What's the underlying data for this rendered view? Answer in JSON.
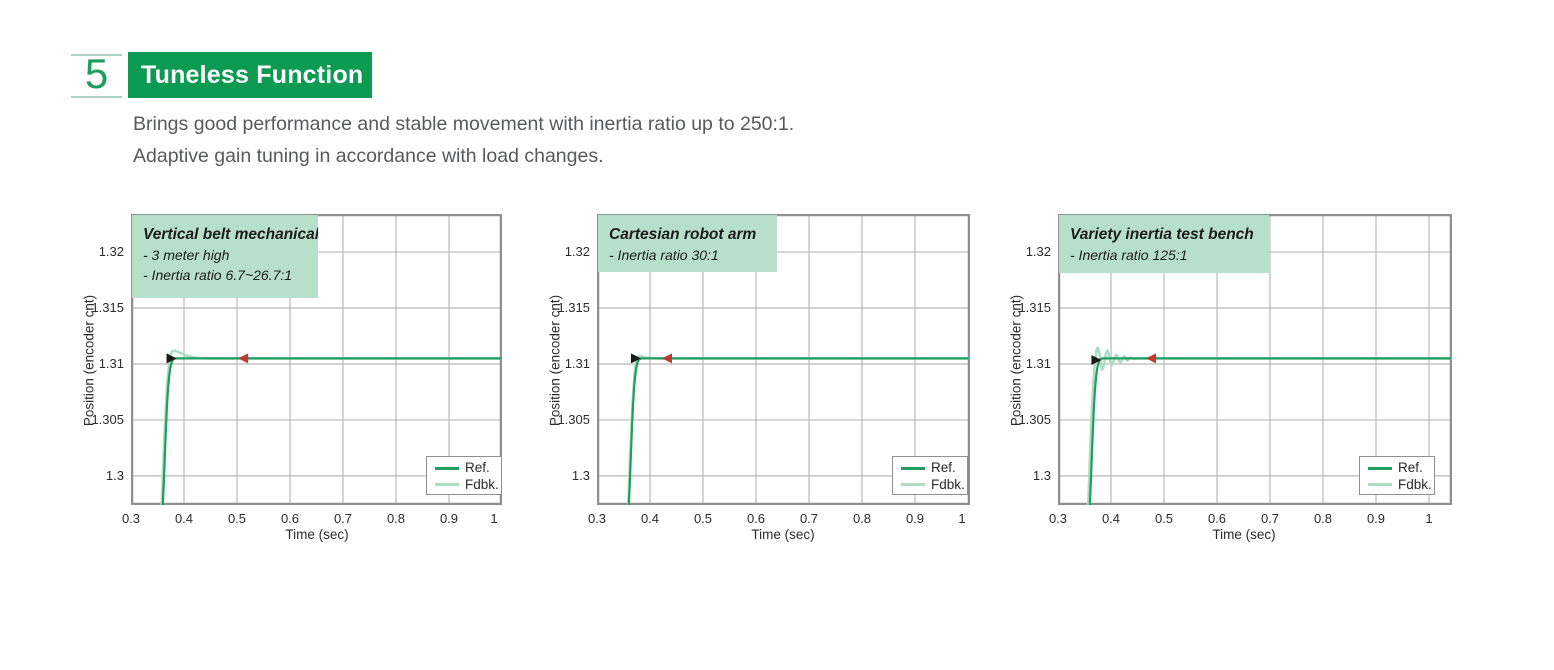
{
  "section": {
    "number": "5",
    "title": "Tuneless Function",
    "description_lines": [
      "Brings good performance and stable movement with inertia ratio up to 250:1.",
      "Adaptive gain tuning in accordance with load changes."
    ]
  },
  "colors": {
    "header_green": "#0d9a52",
    "header_text": "#ffffff",
    "number_green": "#1d9c5f",
    "number_line_green": "#a9d4c2",
    "description_text": "#58595b",
    "mint_box": "#b7dfca",
    "label_text": "#1c1c1c",
    "ref_line": "#1f9e62",
    "fdbk_line": "#aedcc4",
    "marker_black": "#1a1a1a",
    "marker_red": "#c0392f",
    "grid": "#b9b9b9",
    "plot_border": "#8f8f8f",
    "axis_text": "#2b2b2b"
  },
  "chart_data": [
    {
      "type": "line",
      "title": "Vertical belt mechanical",
      "annotation_lines": [
        "- 3 meter high",
        "- Inertia ratio 6.7~26.7:1"
      ],
      "xlabel": "Time (sec)",
      "ylabel": "Position (encoder cnt)",
      "x_ticks": [
        "0.3",
        "0.4",
        "0.5",
        "0.6",
        "0.7",
        "0.8",
        "0.9",
        "1"
      ],
      "y_ticks": [
        "1.3",
        "1.305",
        "1.31",
        "1.315",
        "1.32"
      ],
      "xlim": [
        0.3,
        1.0
      ],
      "ylim": [
        1.2974,
        1.3234
      ],
      "grid": true,
      "legend": {
        "position": "bottom-right",
        "entries": [
          "Ref.",
          "Fdbk."
        ]
      },
      "settle_value": 1.3105,
      "series": [
        {
          "name": "Ref.",
          "points": [
            [
              0.36,
              1.2974
            ],
            [
              0.362,
              1.29955
            ],
            [
              0.364,
              1.30195
            ],
            [
              0.366,
              1.30435
            ],
            [
              0.368,
              1.3063
            ],
            [
              0.37,
              1.30785
            ],
            [
              0.372,
              1.3089
            ],
            [
              0.374,
              1.3096
            ],
            [
              0.376,
              1.31005
            ],
            [
              0.378,
              1.3103
            ],
            [
              0.38,
              1.31043
            ],
            [
              0.383,
              1.31049
            ],
            [
              0.386,
              1.3105
            ],
            [
              1.0,
              1.3105
            ]
          ]
        },
        {
          "name": "Fdbk.",
          "points": [
            [
              0.358,
              1.2974
            ],
            [
              0.36,
              1.2998
            ],
            [
              0.362,
              1.3022
            ],
            [
              0.364,
              1.3045
            ],
            [
              0.366,
              1.3064
            ],
            [
              0.368,
              1.308
            ],
            [
              0.37,
              1.3092
            ],
            [
              0.372,
              1.31
            ],
            [
              0.374,
              1.31062
            ],
            [
              0.376,
              1.31098
            ],
            [
              0.378,
              1.31112
            ],
            [
              0.381,
              1.31118
            ],
            [
              0.385,
              1.31115
            ],
            [
              0.39,
              1.31105
            ],
            [
              0.397,
              1.3109
            ],
            [
              0.406,
              1.31072
            ],
            [
              0.418,
              1.31058
            ],
            [
              0.432,
              1.31052
            ],
            [
              0.45,
              1.3105
            ],
            [
              1.0,
              1.3105
            ]
          ]
        }
      ],
      "markers": [
        {
          "shape": "triangle-right",
          "color": "black",
          "t": 0.384,
          "v": 1.3105
        },
        {
          "shape": "triangle-left",
          "color": "red",
          "t": 0.504,
          "v": 1.3105
        }
      ]
    },
    {
      "type": "line",
      "title": "Cartesian robot arm",
      "annotation_lines": [
        "- Inertia ratio 30:1"
      ],
      "xlabel": "Time (sec)",
      "ylabel": "Position (encoder cnt)",
      "x_ticks": [
        "0.3",
        "0.4",
        "0.5",
        "0.6",
        "0.7",
        "0.8",
        "0.9",
        "1"
      ],
      "y_ticks": [
        "1.3",
        "1.305",
        "1.31",
        "1.315",
        "1.32"
      ],
      "xlim": [
        0.3,
        1.0
      ],
      "ylim": [
        1.2974,
        1.3234
      ],
      "grid": true,
      "legend": {
        "position": "bottom-right",
        "entries": [
          "Ref.",
          "Fdbk."
        ]
      },
      "settle_value": 1.3105,
      "series": [
        {
          "name": "Ref.",
          "points": [
            [
              0.36,
              1.2974
            ],
            [
              0.362,
              1.29955
            ],
            [
              0.364,
              1.30195
            ],
            [
              0.366,
              1.30435
            ],
            [
              0.368,
              1.3063
            ],
            [
              0.37,
              1.30785
            ],
            [
              0.372,
              1.3089
            ],
            [
              0.374,
              1.3096
            ],
            [
              0.376,
              1.31005
            ],
            [
              0.378,
              1.3103
            ],
            [
              0.38,
              1.31043
            ],
            [
              0.383,
              1.31049
            ],
            [
              0.386,
              1.3105
            ],
            [
              1.0,
              1.3105
            ]
          ]
        },
        {
          "name": "Fdbk.",
          "points": [
            [
              0.359,
              1.2974
            ],
            [
              0.361,
              1.2998
            ],
            [
              0.363,
              1.3022
            ],
            [
              0.365,
              1.3045
            ],
            [
              0.367,
              1.3064
            ],
            [
              0.369,
              1.308
            ],
            [
              0.371,
              1.3092
            ],
            [
              0.373,
              1.31
            ],
            [
              0.375,
              1.31045
            ],
            [
              0.377,
              1.31065
            ],
            [
              0.38,
              1.31072
            ],
            [
              0.384,
              1.31068
            ],
            [
              0.39,
              1.3106
            ],
            [
              0.4,
              1.31053
            ],
            [
              0.415,
              1.3105
            ],
            [
              1.0,
              1.3105
            ]
          ]
        }
      ],
      "markers": [
        {
          "shape": "triangle-right",
          "color": "black",
          "t": 0.381,
          "v": 1.3105
        },
        {
          "shape": "triangle-left",
          "color": "red",
          "t": 0.4245,
          "v": 1.3105
        }
      ]
    },
    {
      "type": "line",
      "title": "Variety inertia test bench",
      "annotation_lines": [
        "- Inertia ratio 125:1"
      ],
      "xlabel": "Time (sec)",
      "ylabel": "Position (encoder cnt)",
      "x_ticks": [
        "0.3",
        "0.4",
        "0.5",
        "0.6",
        "0.7",
        "0.8",
        "0.9",
        "1"
      ],
      "y_ticks": [
        "1.3",
        "1.305",
        "1.31",
        "1.315",
        "1.32"
      ],
      "xlim": [
        0.3,
        1.04
      ],
      "ylim": [
        1.2974,
        1.3234
      ],
      "grid": true,
      "legend": {
        "position": "bottom-right",
        "entries": [
          "Ref.",
          "Fdbk."
        ]
      },
      "settle_value": 1.3105,
      "series": [
        {
          "name": "Ref.",
          "points": [
            [
              0.36,
              1.2974
            ],
            [
              0.362,
              1.29955
            ],
            [
              0.364,
              1.30195
            ],
            [
              0.366,
              1.30435
            ],
            [
              0.368,
              1.3063
            ],
            [
              0.37,
              1.30785
            ],
            [
              0.372,
              1.3089
            ],
            [
              0.374,
              1.3096
            ],
            [
              0.376,
              1.31005
            ],
            [
              0.378,
              1.3103
            ],
            [
              0.38,
              1.31043
            ],
            [
              0.383,
              1.31049
            ],
            [
              0.386,
              1.3105
            ],
            [
              1.04,
              1.3105
            ]
          ]
        },
        {
          "name": "Fdbk.",
          "points": [
            [
              0.357,
              1.2974
            ],
            [
              0.359,
              1.3
            ],
            [
              0.361,
              1.3026
            ],
            [
              0.363,
              1.305
            ],
            [
              0.365,
              1.307
            ],
            [
              0.367,
              1.3086
            ],
            [
              0.369,
              1.3098
            ],
            [
              0.371,
              1.3107
            ],
            [
              0.373,
              1.3113
            ],
            [
              0.375,
              1.31145
            ],
            [
              0.377,
              1.3112
            ],
            [
              0.379,
              1.3106
            ],
            [
              0.381,
              1.3099
            ],
            [
              0.383,
              1.3095
            ],
            [
              0.385,
              1.3096
            ],
            [
              0.387,
              1.31
            ],
            [
              0.389,
              1.3106
            ],
            [
              0.391,
              1.311
            ],
            [
              0.393,
              1.3112
            ],
            [
              0.395,
              1.311
            ],
            [
              0.397,
              1.3106
            ],
            [
              0.399,
              1.3102
            ],
            [
              0.401,
              1.3099
            ],
            [
              0.403,
              1.31
            ],
            [
              0.405,
              1.3103
            ],
            [
              0.407,
              1.3106
            ],
            [
              0.409,
              1.3108
            ],
            [
              0.411,
              1.3108
            ],
            [
              0.413,
              1.3106
            ],
            [
              0.415,
              1.3103
            ],
            [
              0.417,
              1.3101
            ],
            [
              0.419,
              1.3102
            ],
            [
              0.421,
              1.3104
            ],
            [
              0.423,
              1.3106
            ],
            [
              0.425,
              1.3107
            ],
            [
              0.427,
              1.3106
            ],
            [
              0.429,
              1.3104
            ],
            [
              0.431,
              1.3103
            ],
            [
              0.433,
              1.3104
            ],
            [
              0.436,
              1.3106
            ],
            [
              0.44,
              1.3105
            ],
            [
              0.444,
              1.31045
            ],
            [
              0.45,
              1.3105
            ],
            [
              1.04,
              1.3105
            ]
          ]
        }
      ],
      "markers": [
        {
          "shape": "triangle-right",
          "color": "black",
          "t": 0.38,
          "v": 1.31035
        },
        {
          "shape": "triangle-left",
          "color": "red",
          "t": 0.468,
          "v": 1.3105
        }
      ]
    }
  ]
}
